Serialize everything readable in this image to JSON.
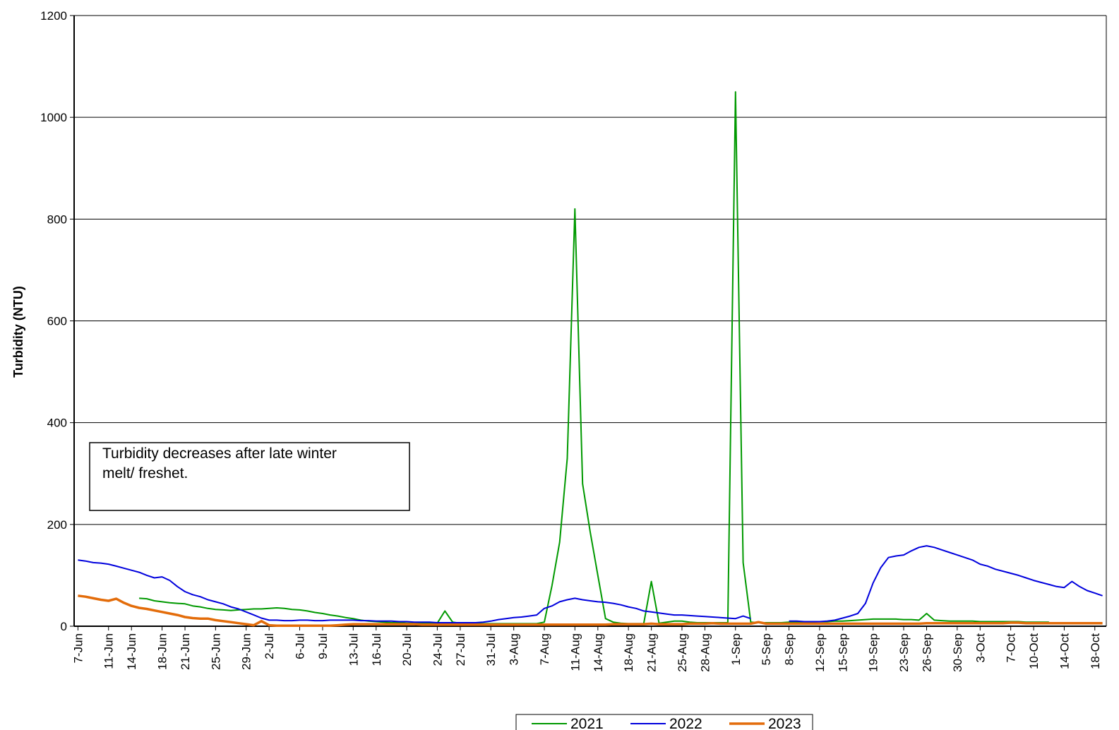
{
  "chart_data": {
    "type": "line",
    "y_label": "Turbidity (NTU)",
    "annotation": [
      "Turbidity decreases after late winter",
      "melt/ freshet."
    ],
    "ylim": [
      0,
      1200
    ],
    "yticks": [
      0,
      200,
      400,
      600,
      800,
      1000,
      1200
    ],
    "grid": true,
    "legend": "bottom",
    "categories": [
      "7-Jun",
      null,
      null,
      null,
      "11-Jun",
      null,
      null,
      "14-Jun",
      null,
      null,
      null,
      "18-Jun",
      null,
      null,
      "21-Jun",
      null,
      null,
      null,
      "25-Jun",
      null,
      null,
      null,
      "29-Jun",
      null,
      null,
      "2-Jul",
      null,
      null,
      null,
      "6-Jul",
      null,
      null,
      "9-Jul",
      null,
      null,
      null,
      "13-Jul",
      null,
      null,
      "16-Jul",
      null,
      null,
      null,
      "20-Jul",
      null,
      null,
      null,
      "24-Jul",
      null,
      null,
      "27-Jul",
      null,
      null,
      null,
      "31-Jul",
      null,
      null,
      "3-Aug",
      null,
      null,
      null,
      "7-Aug",
      null,
      null,
      null,
      "11-Aug",
      null,
      null,
      "14-Aug",
      null,
      null,
      null,
      "18-Aug",
      null,
      null,
      "21-Aug",
      null,
      null,
      null,
      "25-Aug",
      null,
      null,
      "28-Aug",
      null,
      null,
      null,
      "1-Sep",
      null,
      null,
      null,
      "5-Sep",
      null,
      null,
      "8-Sep",
      null,
      null,
      null,
      "12-Sep",
      null,
      null,
      "15-Sep",
      null,
      null,
      null,
      "19-Sep",
      null,
      null,
      null,
      "23-Sep",
      null,
      null,
      "26-Sep",
      null,
      null,
      null,
      "30-Sep",
      null,
      null,
      "3-Oct",
      null,
      null,
      null,
      "7-Oct",
      null,
      null,
      "10-Oct",
      null,
      null,
      null,
      "14-Oct",
      null,
      null,
      null,
      "18-Oct",
      null
    ],
    "series": [
      {
        "name": "2021",
        "color": "#009900",
        "width": 2,
        "values": [
          null,
          null,
          null,
          null,
          null,
          null,
          null,
          null,
          55,
          54,
          50,
          48,
          46,
          45,
          44,
          40,
          38,
          35,
          33,
          32,
          31,
          32,
          33,
          34,
          34,
          35,
          36,
          35,
          33,
          32,
          30,
          27,
          25,
          22,
          20,
          17,
          15,
          12,
          10,
          9,
          8,
          7,
          7,
          6,
          6,
          6,
          6,
          6,
          30,
          8,
          6,
          5,
          5,
          5,
          5,
          5,
          5,
          5,
          5,
          5,
          5,
          8,
          80,
          165,
          330,
          820,
          280,
          185,
          100,
          15,
          8,
          6,
          5,
          5,
          5,
          88,
          6,
          8,
          10,
          10,
          8,
          7,
          7,
          7,
          7,
          7,
          1050,
          125,
          8,
          7,
          7,
          7,
          7,
          8,
          8,
          8,
          8,
          9,
          9,
          10,
          10,
          11,
          12,
          13,
          14,
          14,
          14,
          14,
          13,
          13,
          12,
          25,
          12,
          11,
          10,
          10,
          10,
          10,
          9,
          9,
          9,
          9,
          9,
          9,
          8,
          8,
          8,
          8,
          null,
          null,
          null,
          null,
          null,
          null,
          null
        ]
      },
      {
        "name": "2022",
        "color": "#0000dd",
        "width": 2,
        "values": [
          130,
          128,
          125,
          124,
          122,
          118,
          114,
          110,
          106,
          100,
          95,
          97,
          90,
          78,
          68,
          62,
          58,
          52,
          48,
          44,
          38,
          34,
          28,
          22,
          16,
          12,
          12,
          11,
          11,
          12,
          12,
          11,
          11,
          12,
          12,
          12,
          12,
          11,
          11,
          10,
          10,
          10,
          9,
          9,
          8,
          8,
          8,
          7,
          7,
          7,
          7,
          7,
          7,
          8,
          10,
          13,
          15,
          17,
          18,
          20,
          22,
          35,
          40,
          48,
          52,
          55,
          52,
          50,
          48,
          47,
          45,
          42,
          38,
          35,
          30,
          28,
          26,
          24,
          22,
          22,
          21,
          20,
          19,
          18,
          17,
          16,
          15,
          20,
          15,
          null,
          null,
          null,
          null,
          10,
          10,
          9,
          9,
          9,
          10,
          12,
          16,
          20,
          25,
          45,
          85,
          115,
          135,
          138,
          140,
          148,
          155,
          158,
          155,
          150,
          145,
          140,
          135,
          130,
          122,
          118,
          112,
          108,
          104,
          100,
          95,
          90,
          86,
          82,
          78,
          76,
          88,
          78,
          70,
          65,
          60
        ]
      },
      {
        "name": "2023",
        "color": "#e36c0a",
        "width": 3.5,
        "values": [
          60,
          58,
          55,
          52,
          50,
          54,
          46,
          40,
          36,
          34,
          31,
          28,
          25,
          22,
          18,
          16,
          15,
          15,
          12,
          10,
          8,
          6,
          4,
          2,
          10,
          2,
          1,
          1,
          1,
          1,
          1,
          1,
          1,
          1,
          2,
          3,
          4,
          4,
          4,
          4,
          4,
          4,
          4,
          4,
          4,
          3,
          3,
          3,
          3,
          3,
          3,
          3,
          3,
          3,
          3,
          3,
          3,
          3,
          3,
          3,
          3,
          3,
          3,
          3,
          3,
          3,
          3,
          3,
          3,
          3,
          4,
          4,
          4,
          4,
          4,
          5,
          4,
          4,
          4,
          4,
          5,
          5,
          5,
          6,
          5,
          5,
          5,
          5,
          5,
          8,
          5,
          5,
          5,
          5,
          5,
          5,
          5,
          5,
          5,
          5,
          5,
          5,
          5,
          5,
          5,
          5,
          5,
          5,
          5,
          5,
          5,
          6,
          6,
          6,
          6,
          6,
          6,
          6,
          6,
          6,
          6,
          6,
          7,
          7,
          6,
          6,
          6,
          6,
          6,
          6,
          6,
          6,
          6,
          6,
          6
        ]
      }
    ]
  }
}
